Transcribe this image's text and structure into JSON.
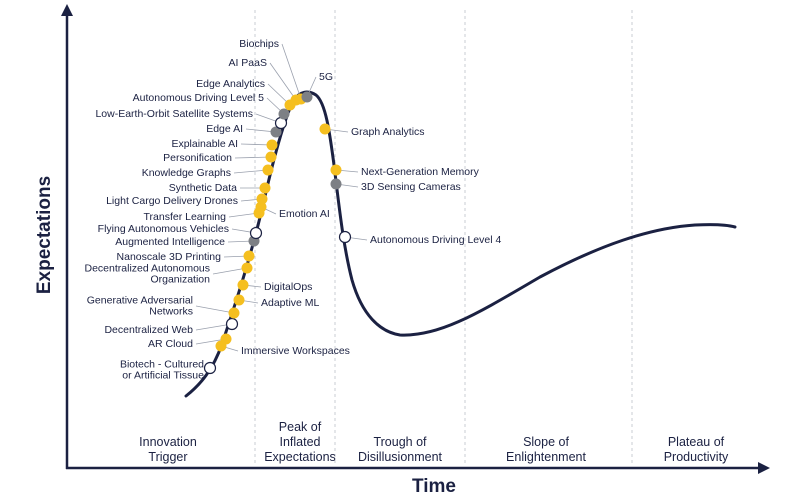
{
  "axes": {
    "x_title": "Time",
    "y_title": "Expectations"
  },
  "phases": [
    {
      "id": "innovation",
      "lines": [
        "Innovation",
        "Trigger"
      ]
    },
    {
      "id": "peak",
      "lines": [
        "Peak of",
        "Inflated",
        "Expectations"
      ]
    },
    {
      "id": "trough",
      "lines": [
        "Trough of",
        "Disillusionment"
      ]
    },
    {
      "id": "slope",
      "lines": [
        "Slope of",
        "Enlightenment"
      ]
    },
    {
      "id": "plateau",
      "lines": [
        "Plateau of",
        "Productivity"
      ]
    }
  ],
  "legend_colors": {
    "yellow": "#f5bf1f",
    "gray": "#7d8085",
    "white": "#ffffff",
    "curve": "#1b2142"
  },
  "technologies": [
    {
      "lines": [
        "Biotech - Cultured",
        "or Artificial Tissue"
      ],
      "marker": "white"
    },
    {
      "lines": [
        "Immersive Workspaces"
      ],
      "marker": "yellow"
    },
    {
      "lines": [
        "AR Cloud"
      ],
      "marker": "yellow"
    },
    {
      "lines": [
        "Decentralized Web"
      ],
      "marker": "white"
    },
    {
      "lines": [
        "Generative Adversarial",
        "Networks"
      ],
      "marker": "yellow"
    },
    {
      "lines": [
        "Adaptive ML"
      ],
      "marker": "yellow"
    },
    {
      "lines": [
        "DigitalOps"
      ],
      "marker": "yellow"
    },
    {
      "lines": [
        "Decentralized Autonomous",
        "Organization"
      ],
      "marker": "yellow"
    },
    {
      "lines": [
        "Nanoscale 3D Printing"
      ],
      "marker": "yellow"
    },
    {
      "lines": [
        "Augmented Intelligence"
      ],
      "marker": "gray"
    },
    {
      "lines": [
        "Flying Autonomous Vehicles"
      ],
      "marker": "white"
    },
    {
      "lines": [
        "Transfer Learning"
      ],
      "marker": "yellow"
    },
    {
      "lines": [
        "Emotion AI"
      ],
      "marker": "yellow"
    },
    {
      "lines": [
        "Light Cargo Delivery Drones"
      ],
      "marker": "yellow"
    },
    {
      "lines": [
        "Synthetic Data"
      ],
      "marker": "yellow"
    },
    {
      "lines": [
        "Knowledge Graphs"
      ],
      "marker": "yellow"
    },
    {
      "lines": [
        "Personification"
      ],
      "marker": "yellow"
    },
    {
      "lines": [
        "Explainable AI"
      ],
      "marker": "yellow"
    },
    {
      "lines": [
        "Edge AI"
      ],
      "marker": "gray"
    },
    {
      "lines": [
        "Low-Earth-Orbit Satellite Systems"
      ],
      "marker": "white"
    },
    {
      "lines": [
        "Autonomous Driving Level 5"
      ],
      "marker": "gray"
    },
    {
      "lines": [
        "Edge Analytics"
      ],
      "marker": "yellow"
    },
    {
      "lines": [
        "AI PaaS"
      ],
      "marker": "yellow"
    },
    {
      "lines": [
        "Biochips"
      ],
      "marker": "yellow"
    },
    {
      "lines": [
        "5G"
      ],
      "marker": "gray"
    },
    {
      "lines": [
        "Graph Analytics"
      ],
      "marker": "yellow"
    },
    {
      "lines": [
        "Next-Generation Memory"
      ],
      "marker": "yellow"
    },
    {
      "lines": [
        "3D Sensing Cameras"
      ],
      "marker": "gray"
    },
    {
      "lines": [
        "Autonomous Driving Level 4"
      ],
      "marker": "white"
    }
  ]
}
